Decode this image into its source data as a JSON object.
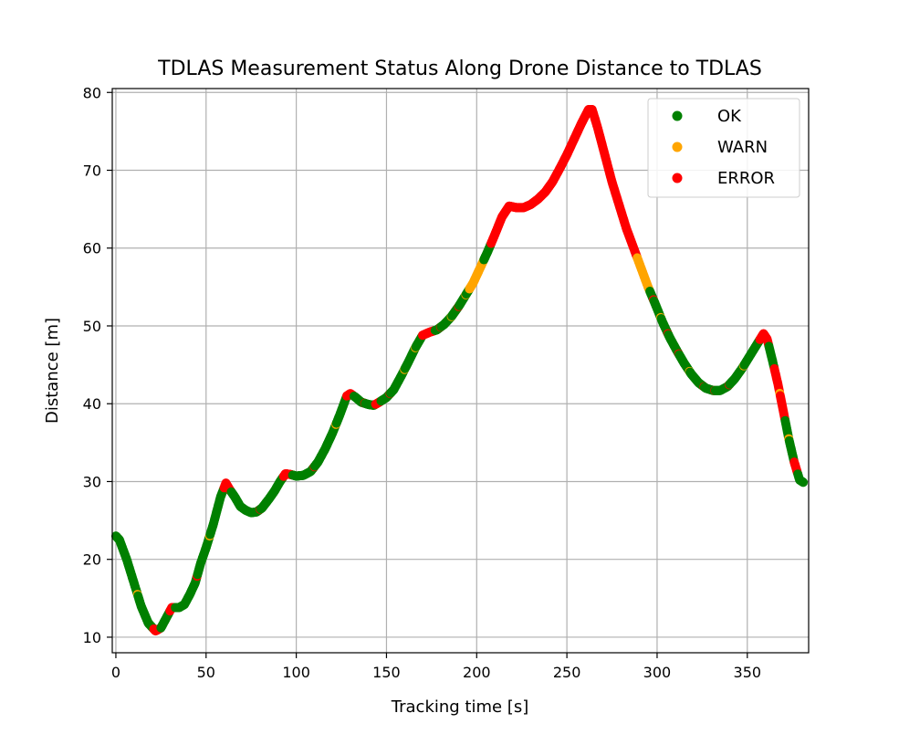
{
  "chart_data": {
    "type": "scatter",
    "title": "TDLAS Measurement Status Along Drone Distance to TDLAS",
    "xlabel": "Tracking time [s]",
    "ylabel": "Distance [m]",
    "xlim": [
      -2,
      384
    ],
    "ylim": [
      8,
      80.5
    ],
    "xticks": [
      0,
      50,
      100,
      150,
      200,
      250,
      300,
      350
    ],
    "yticks": [
      10,
      20,
      30,
      40,
      50,
      60,
      70,
      80
    ],
    "grid": true,
    "legend_position": "top-right",
    "series": [
      {
        "name": "OK",
        "label": "OK",
        "color": "#008000"
      },
      {
        "name": "WARN",
        "label": "WARN",
        "color": "#ffa500"
      },
      {
        "name": "ERROR",
        "label": "ERROR",
        "color": "#ff0000"
      }
    ],
    "path": [
      [
        0,
        23
      ],
      [
        2,
        22.5
      ],
      [
        6,
        20
      ],
      [
        10,
        17
      ],
      [
        14,
        14
      ],
      [
        18,
        11.8
      ],
      [
        22,
        10.8
      ],
      [
        25,
        11.2
      ],
      [
        28,
        12.5
      ],
      [
        31,
        13.8
      ],
      [
        35,
        13.8
      ],
      [
        38,
        14.2
      ],
      [
        41,
        15.5
      ],
      [
        44,
        17
      ],
      [
        47,
        19.5
      ],
      [
        50,
        21.5
      ],
      [
        54,
        24.5
      ],
      [
        58,
        28
      ],
      [
        61,
        29.8
      ],
      [
        63,
        29
      ],
      [
        66,
        28
      ],
      [
        69,
        26.8
      ],
      [
        72,
        26.3
      ],
      [
        75,
        26
      ],
      [
        78,
        26.1
      ],
      [
        81,
        26.6
      ],
      [
        85,
        27.8
      ],
      [
        88,
        28.8
      ],
      [
        91,
        30
      ],
      [
        94,
        31
      ],
      [
        97,
        30.9
      ],
      [
        100,
        30.7
      ],
      [
        104,
        30.8
      ],
      [
        108,
        31.3
      ],
      [
        112,
        32.5
      ],
      [
        116,
        34.2
      ],
      [
        120,
        36.2
      ],
      [
        124,
        38.5
      ],
      [
        128,
        41
      ],
      [
        130,
        41.3
      ],
      [
        133,
        40.8
      ],
      [
        136,
        40.2
      ],
      [
        140,
        39.9
      ],
      [
        143,
        39.8
      ],
      [
        146,
        40.2
      ],
      [
        150,
        40.8
      ],
      [
        154,
        41.8
      ],
      [
        158,
        43.5
      ],
      [
        162,
        45.3
      ],
      [
        166,
        47.2
      ],
      [
        170,
        48.8
      ],
      [
        174,
        49.2
      ],
      [
        178,
        49.5
      ],
      [
        182,
        50.2
      ],
      [
        186,
        51.2
      ],
      [
        190,
        52.5
      ],
      [
        194,
        54
      ],
      [
        198,
        55.5
      ],
      [
        202,
        57.5
      ],
      [
        206,
        59.5
      ],
      [
        210,
        61.7
      ],
      [
        214,
        64
      ],
      [
        218,
        65.4
      ],
      [
        222,
        65.2
      ],
      [
        226,
        65.2
      ],
      [
        230,
        65.6
      ],
      [
        234,
        66.3
      ],
      [
        238,
        67.2
      ],
      [
        242,
        68.5
      ],
      [
        246,
        70.2
      ],
      [
        250,
        72
      ],
      [
        254,
        74
      ],
      [
        258,
        76
      ],
      [
        262,
        77.8
      ],
      [
        264,
        77.8
      ],
      [
        267,
        75.5
      ],
      [
        271,
        72
      ],
      [
        275,
        68.5
      ],
      [
        279,
        65.5
      ],
      [
        283,
        62.5
      ],
      [
        287,
        60
      ],
      [
        291,
        57.5
      ],
      [
        295,
        55
      ],
      [
        299,
        52.8
      ],
      [
        303,
        50.5
      ],
      [
        307,
        48.5
      ],
      [
        311,
        46.8
      ],
      [
        315,
        45.2
      ],
      [
        319,
        43.8
      ],
      [
        323,
        42.7
      ],
      [
        327,
        42
      ],
      [
        331,
        41.7
      ],
      [
        335,
        41.7
      ],
      [
        339,
        42.2
      ],
      [
        343,
        43.2
      ],
      [
        347,
        44.5
      ],
      [
        351,
        46
      ],
      [
        355,
        47.5
      ],
      [
        359,
        49
      ],
      [
        361,
        48.3
      ],
      [
        364,
        45.5
      ],
      [
        367,
        42.5
      ],
      [
        370,
        39
      ],
      [
        373,
        35.5
      ],
      [
        376,
        32.5
      ],
      [
        379,
        30.2
      ],
      [
        381,
        29.9
      ]
    ],
    "status_segments": [
      {
        "from": 0,
        "to": 21,
        "status": "OK"
      },
      {
        "from": 21,
        "to": 25,
        "status": "ERROR"
      },
      {
        "from": 25,
        "to": 30,
        "status": "OK"
      },
      {
        "from": 30,
        "to": 33,
        "status": "ERROR"
      },
      {
        "from": 33,
        "to": 60,
        "status": "OK"
      },
      {
        "from": 60,
        "to": 64,
        "status": "ERROR"
      },
      {
        "from": 64,
        "to": 93,
        "status": "OK"
      },
      {
        "from": 93,
        "to": 98,
        "status": "ERROR"
      },
      {
        "from": 98,
        "to": 128,
        "status": "OK"
      },
      {
        "from": 128,
        "to": 132,
        "status": "ERROR"
      },
      {
        "from": 132,
        "to": 144,
        "status": "OK"
      },
      {
        "from": 144,
        "to": 147,
        "status": "ERROR"
      },
      {
        "from": 147,
        "to": 170,
        "status": "OK"
      },
      {
        "from": 170,
        "to": 177,
        "status": "ERROR"
      },
      {
        "from": 177,
        "to": 196,
        "status": "OK"
      },
      {
        "from": 196,
        "to": 204,
        "status": "WARN"
      },
      {
        "from": 204,
        "to": 208,
        "status": "OK"
      },
      {
        "from": 208,
        "to": 289,
        "status": "ERROR"
      },
      {
        "from": 289,
        "to": 296,
        "status": "WARN"
      },
      {
        "from": 296,
        "to": 357,
        "status": "OK"
      },
      {
        "from": 357,
        "to": 362,
        "status": "ERROR"
      },
      {
        "from": 362,
        "to": 365,
        "status": "OK"
      },
      {
        "from": 365,
        "to": 371,
        "status": "ERROR"
      },
      {
        "from": 371,
        "to": 376,
        "status": "OK"
      },
      {
        "from": 376,
        "to": 378,
        "status": "ERROR"
      },
      {
        "from": 378,
        "to": 381,
        "status": "OK"
      }
    ],
    "scattered_flags": [
      {
        "t": 12,
        "status": "WARN"
      },
      {
        "t": 45,
        "status": "ERROR"
      },
      {
        "t": 52,
        "status": "WARN"
      },
      {
        "t": 80,
        "status": "ERROR"
      },
      {
        "t": 110,
        "status": "ERROR"
      },
      {
        "t": 122,
        "status": "WARN"
      },
      {
        "t": 138,
        "status": "ERROR"
      },
      {
        "t": 152,
        "status": "ERROR"
      },
      {
        "t": 160,
        "status": "WARN"
      },
      {
        "t": 166,
        "status": "WARN"
      },
      {
        "t": 180,
        "status": "ERROR"
      },
      {
        "t": 186,
        "status": "WARN"
      },
      {
        "t": 190,
        "status": "ERROR"
      },
      {
        "t": 194,
        "status": "WARN"
      },
      {
        "t": 298,
        "status": "ERROR"
      },
      {
        "t": 302,
        "status": "WARN"
      },
      {
        "t": 306,
        "status": "ERROR"
      },
      {
        "t": 312,
        "status": "ERROR"
      },
      {
        "t": 318,
        "status": "WARN"
      },
      {
        "t": 326,
        "status": "ERROR"
      },
      {
        "t": 332,
        "status": "ERROR"
      },
      {
        "t": 340,
        "status": "ERROR"
      },
      {
        "t": 348,
        "status": "WARN"
      },
      {
        "t": 368,
        "status": "WARN"
      },
      {
        "t": 373,
        "status": "WARN"
      }
    ]
  }
}
